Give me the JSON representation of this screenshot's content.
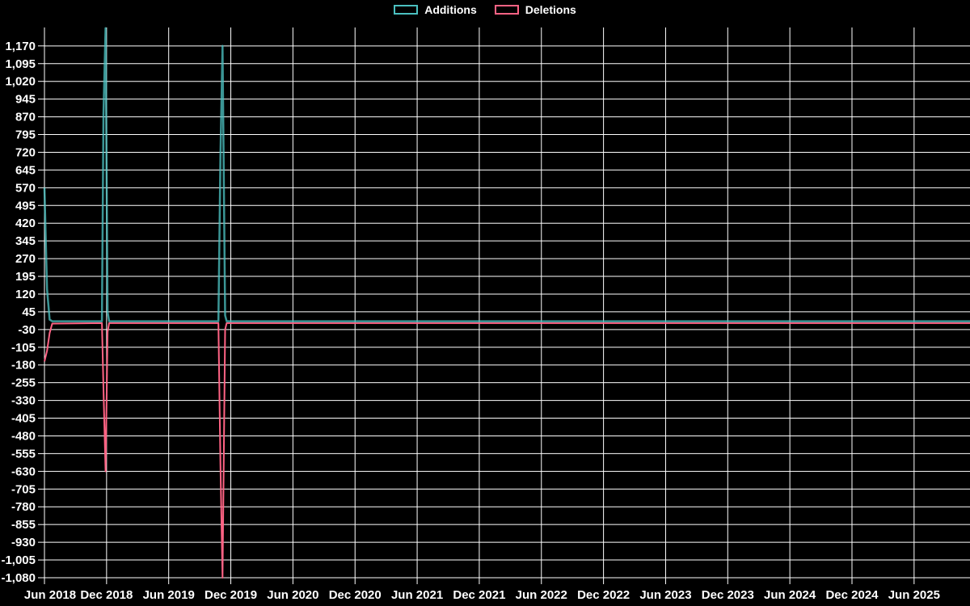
{
  "page": {
    "background_color": "#000000",
    "text_color": "#ffffff"
  },
  "legend": {
    "position": "top",
    "items": [
      {
        "label": "Additions",
        "color": "#4bc0c0"
      },
      {
        "label": "Deletions",
        "color": "#ff6384"
      }
    ]
  },
  "chart_data": {
    "type": "line",
    "title": "",
    "xlabel": "",
    "ylabel": "",
    "grid": true,
    "legend_position": "top",
    "x_unit": "months since Jun 2018",
    "x_range_months": [
      0,
      89.4
    ],
    "x_tick_positions_months": [
      0,
      6,
      12,
      18,
      24,
      30,
      36,
      42,
      48,
      54,
      60,
      66,
      72,
      78,
      84
    ],
    "x_tick_labels": [
      "Jun 2018",
      "Dec 2018",
      "Jun 2019",
      "Dec 2019",
      "Jun 2020",
      "Dec 2020",
      "Jun 2021",
      "Dec 2021",
      "Jun 2022",
      "Dec 2022",
      "Jun 2023",
      "Dec 2023",
      "Jun 2024",
      "Dec 2024",
      "Jun 2025"
    ],
    "y_range": [
      -1080,
      1248
    ],
    "y_ticks": [
      -1080,
      -1005,
      -930,
      -855,
      -780,
      -705,
      -630,
      -555,
      -480,
      -405,
      -330,
      -255,
      -180,
      -105,
      -30,
      45,
      120,
      195,
      270,
      345,
      420,
      495,
      570,
      645,
      720,
      795,
      870,
      945,
      1020,
      1095,
      1170
    ],
    "series": [
      {
        "name": "Additions",
        "color": "#4bc0c0",
        "opacity": 0.78,
        "width": 2.5,
        "points": [
          [
            0,
            570
          ],
          [
            0.25,
            140
          ],
          [
            0.5,
            12
          ],
          [
            0.75,
            5
          ],
          [
            5.55,
            5
          ],
          [
            5.7,
            880
          ],
          [
            5.9,
            1245
          ],
          [
            6.1,
            45
          ],
          [
            6.25,
            5
          ],
          [
            16.8,
            5
          ],
          [
            17.0,
            700
          ],
          [
            17.2,
            1170
          ],
          [
            17.45,
            30
          ],
          [
            17.6,
            5
          ],
          [
            89.4,
            5
          ]
        ]
      },
      {
        "name": "Deletions",
        "color": "#ff6384",
        "opacity": 1,
        "width": 2,
        "points": [
          [
            0,
            -165
          ],
          [
            0.25,
            -120
          ],
          [
            0.5,
            -45
          ],
          [
            0.75,
            -5
          ],
          [
            5.55,
            -3
          ],
          [
            5.7,
            -280
          ],
          [
            5.9,
            -630
          ],
          [
            6.1,
            -40
          ],
          [
            6.25,
            -3
          ],
          [
            16.8,
            -3
          ],
          [
            17.0,
            -600
          ],
          [
            17.2,
            -1080
          ],
          [
            17.45,
            -30
          ],
          [
            17.6,
            -3
          ],
          [
            89.4,
            -3
          ]
        ]
      }
    ]
  }
}
